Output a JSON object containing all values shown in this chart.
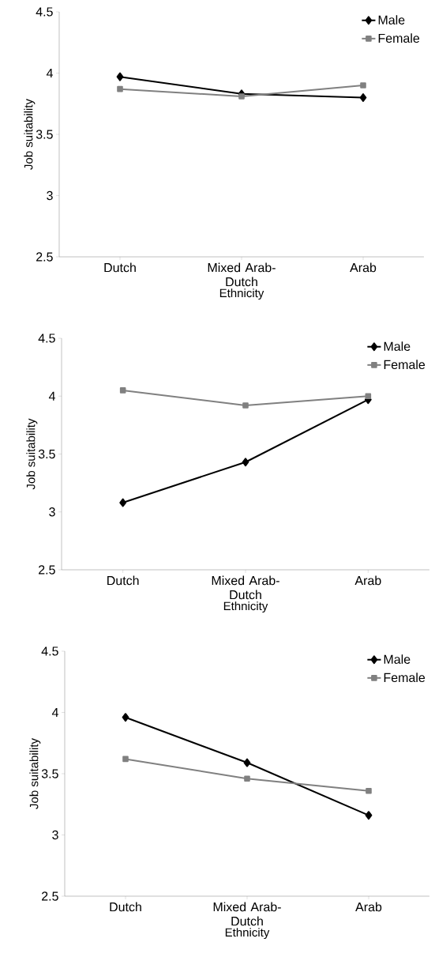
{
  "chart_data": [
    {
      "type": "line",
      "categories": [
        "Dutch",
        "Mixed Arab-Dutch",
        "Arab"
      ],
      "xlabel": "Ethnicity",
      "ylabel": "Job suitability",
      "ylim": [
        2.5,
        4.5
      ],
      "yticks": [
        2.5,
        3,
        3.5,
        4,
        4.5
      ],
      "legend": "top right",
      "series": [
        {
          "name": "Male",
          "color": "#000000",
          "marker": "diamond",
          "values": [
            3.97,
            3.83,
            3.8
          ]
        },
        {
          "name": "Female",
          "color": "#808080",
          "marker": "square",
          "values": [
            3.87,
            3.81,
            3.9
          ]
        }
      ]
    },
    {
      "type": "line",
      "categories": [
        "Dutch",
        "Mixed Arab-Dutch",
        "Arab"
      ],
      "xlabel": "Ethnicity",
      "ylabel": "Job suitability",
      "ylim": [
        2.5,
        4.5
      ],
      "yticks": [
        2.5,
        3,
        3.5,
        4,
        4.5
      ],
      "legend": "top right",
      "series": [
        {
          "name": "Male",
          "color": "#000000",
          "marker": "diamond",
          "values": [
            3.08,
            3.43,
            3.97
          ]
        },
        {
          "name": "Female",
          "color": "#808080",
          "marker": "square",
          "values": [
            4.05,
            3.92,
            4.0
          ]
        }
      ]
    },
    {
      "type": "line",
      "categories": [
        "Dutch",
        "Mixed Arab-Dutch",
        "Arab"
      ],
      "xlabel": "Ethnicity",
      "ylabel": "Job suitability",
      "ylim": [
        2.5,
        4.5
      ],
      "yticks": [
        2.5,
        3,
        3.5,
        4,
        4.5
      ],
      "legend": "top right",
      "series": [
        {
          "name": "Male",
          "color": "#000000",
          "marker": "diamond",
          "values": [
            3.96,
            3.59,
            3.16
          ]
        },
        {
          "name": "Female",
          "color": "#808080",
          "marker": "square",
          "values": [
            3.62,
            3.46,
            3.36
          ]
        }
      ]
    }
  ]
}
